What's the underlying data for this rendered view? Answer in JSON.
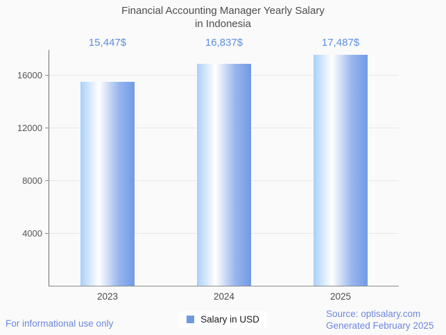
{
  "title": {
    "line1": "Financial Accounting Manager Yearly Salary",
    "line2": "in Indonesia"
  },
  "chart_data": {
    "type": "bar",
    "title": "Financial Accounting Manager Yearly Salary in Indonesia",
    "categories": [
      "2023",
      "2024",
      "2025"
    ],
    "values": [
      15447,
      16837,
      17487
    ],
    "value_labels": [
      "15,447$",
      "16,837$",
      "17,487$"
    ],
    "series_name": "Salary in USD",
    "xlabel": "",
    "ylabel": "",
    "ylim": [
      0,
      17870
    ],
    "yticks": [
      4000,
      8000,
      12000,
      16000
    ],
    "grid": true,
    "legend_position": "bottom",
    "bar_gradient": [
      "#a9d0fa",
      "#ffffff",
      "#9ab7ee",
      "#6f9ae5"
    ],
    "value_label_color": "#5c8ee0"
  },
  "legend": {
    "label": "Salary in USD",
    "swatch_color": "#6d9ae3"
  },
  "footer": {
    "note": "For informational use only",
    "source": "Source: optisalary.com",
    "generated": "Generated February 2025",
    "link_color": "#6d87dd"
  },
  "colors": {
    "background": "#fafafa",
    "title_text": "#4c4c4c",
    "axis": "#6e6e6e",
    "gridline": "#e6e6e6",
    "tick_text": "#555555"
  }
}
